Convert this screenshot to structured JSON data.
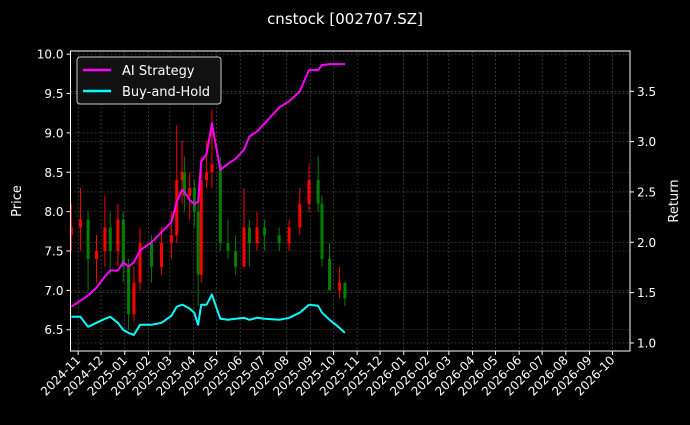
{
  "chart_data": {
    "type": "line",
    "title": "cnstock [002707.SZ]",
    "ylabel_left": "Price",
    "ylabel_right": "Return",
    "ylim_left": [
      6.23,
      10.04
    ],
    "ylim_right": [
      0.92,
      3.9
    ],
    "xlim": [
      "2024-10-22",
      "2026-10-24"
    ],
    "grid": true,
    "legend_placement": "top-left",
    "yticks_left": [
      "6.5",
      "7.0",
      "7.5",
      "8.0",
      "8.5",
      "9.0",
      "9.5",
      "10.0"
    ],
    "yticks_right": [
      "1.0",
      "1.5",
      "2.0",
      "2.5",
      "3.0",
      "3.5"
    ],
    "xticks": [
      "2024-11",
      "2024-12",
      "2025-01",
      "2025-02",
      "2025-03",
      "2025-04",
      "2025-05",
      "2025-06",
      "2025-07",
      "2025-08",
      "2025-09",
      "2025-10",
      "2025-11",
      "2025-12",
      "2026-01",
      "2026-02",
      "2026-03",
      "2026-04",
      "2026-05",
      "2026-06",
      "2026-07",
      "2026-08",
      "2026-09",
      "2026-10"
    ],
    "colors": {
      "background": "#000000",
      "up": "#ff0000",
      "down": "#008000",
      "strategy": "#ff00ff",
      "buyhold": "#00ffff",
      "grid": "#555555",
      "text": "#ffffff"
    },
    "candles": {
      "axis": "left",
      "columns": [
        "date",
        "open",
        "high",
        "low",
        "close"
      ],
      "rows": [
        [
          "2024-10-23",
          7.7,
          8.1,
          7.5,
          7.8
        ],
        [
          "2024-11-04",
          7.8,
          8.3,
          7.5,
          7.9
        ],
        [
          "2024-11-14",
          7.9,
          8.0,
          7.0,
          7.4
        ],
        [
          "2024-11-25",
          7.4,
          7.7,
          7.1,
          7.5
        ],
        [
          "2024-12-06",
          7.5,
          8.2,
          7.3,
          7.8
        ],
        [
          "2024-12-13",
          7.8,
          8.0,
          7.2,
          7.5
        ],
        [
          "2024-12-23",
          7.5,
          8.1,
          7.3,
          7.9
        ],
        [
          "2024-12-30",
          7.9,
          8.0,
          7.1,
          7.3
        ],
        [
          "2025-01-06",
          7.3,
          7.4,
          6.5,
          6.7
        ],
        [
          "2025-01-13",
          6.7,
          7.3,
          6.6,
          7.1
        ],
        [
          "2025-01-21",
          7.1,
          7.8,
          7.0,
          7.6
        ],
        [
          "2025-02-05",
          7.6,
          7.7,
          7.1,
          7.3
        ],
        [
          "2025-02-18",
          7.3,
          7.8,
          7.2,
          7.6
        ],
        [
          "2025-03-03",
          7.6,
          8.0,
          7.4,
          7.7
        ],
        [
          "2025-03-10",
          7.7,
          9.1,
          7.6,
          8.4
        ],
        [
          "2025-03-17",
          8.4,
          8.9,
          8.1,
          8.5
        ],
        [
          "2025-03-20",
          8.5,
          8.7,
          8.0,
          8.2
        ],
        [
          "2025-03-27",
          8.2,
          8.5,
          7.9,
          8.3
        ],
        [
          "2025-04-02",
          8.3,
          8.4,
          7.8,
          8.0
        ],
        [
          "2025-04-07",
          8.0,
          8.1,
          6.8,
          7.2
        ],
        [
          "2025-04-11",
          7.2,
          8.7,
          7.1,
          8.4
        ],
        [
          "2025-04-18",
          8.4,
          8.9,
          8.3,
          8.5
        ],
        [
          "2025-04-25",
          8.5,
          9.3,
          8.3,
          8.6
        ],
        [
          "2025-05-06",
          8.6,
          8.7,
          7.5,
          7.6
        ],
        [
          "2025-05-16",
          7.6,
          7.9,
          7.4,
          7.5
        ],
        [
          "2025-05-26",
          7.5,
          7.7,
          7.2,
          7.3
        ],
        [
          "2025-06-06",
          7.3,
          8.3,
          7.3,
          7.8
        ],
        [
          "2025-06-13",
          7.8,
          7.9,
          7.3,
          7.6
        ],
        [
          "2025-06-23",
          7.6,
          8.0,
          7.5,
          7.8
        ],
        [
          "2025-07-03",
          7.8,
          7.9,
          7.5,
          7.7
        ],
        [
          "2025-07-22",
          7.7,
          7.8,
          7.5,
          7.6
        ],
        [
          "2025-08-04",
          7.6,
          7.9,
          7.5,
          7.8
        ],
        [
          "2025-08-18",
          7.8,
          8.3,
          7.7,
          8.1
        ],
        [
          "2025-08-30",
          8.1,
          8.6,
          8.0,
          8.4
        ],
        [
          "2025-09-11",
          8.4,
          8.7,
          8.0,
          8.1
        ],
        [
          "2025-09-16",
          8.1,
          8.2,
          7.3,
          7.4
        ],
        [
          "2025-09-26",
          7.4,
          7.6,
          7.0,
          7.0
        ],
        [
          "2025-10-09",
          7.0,
          7.3,
          6.9,
          7.1
        ],
        [
          "2025-10-16",
          7.1,
          7.1,
          6.8,
          6.9
        ]
      ]
    },
    "series": [
      {
        "name": "AI Strategy",
        "axis": "right",
        "values": [
          1.36,
          1.42,
          1.47,
          1.55,
          1.66,
          1.72,
          1.72,
          1.8,
          1.76,
          1.8,
          1.92,
          2.0,
          2.1,
          2.2,
          2.4,
          2.52,
          2.5,
          2.42,
          2.38,
          2.4,
          2.8,
          2.88,
          3.18,
          2.72,
          2.78,
          2.83,
          2.92,
          3.05,
          3.1,
          3.18,
          3.34,
          3.4,
          3.5,
          3.71,
          3.71,
          3.76,
          3.77,
          3.77,
          3.77
        ]
      },
      {
        "name": "Buy-and-Hold",
        "axis": "right",
        "values": [
          1.26,
          1.26,
          1.16,
          1.2,
          1.24,
          1.26,
          1.2,
          1.13,
          1.1,
          1.08,
          1.18,
          1.18,
          1.2,
          1.27,
          1.36,
          1.38,
          1.37,
          1.34,
          1.3,
          1.18,
          1.38,
          1.38,
          1.48,
          1.24,
          1.23,
          1.24,
          1.25,
          1.23,
          1.25,
          1.24,
          1.23,
          1.25,
          1.3,
          1.38,
          1.37,
          1.3,
          1.23,
          1.15,
          1.1
        ]
      }
    ]
  }
}
